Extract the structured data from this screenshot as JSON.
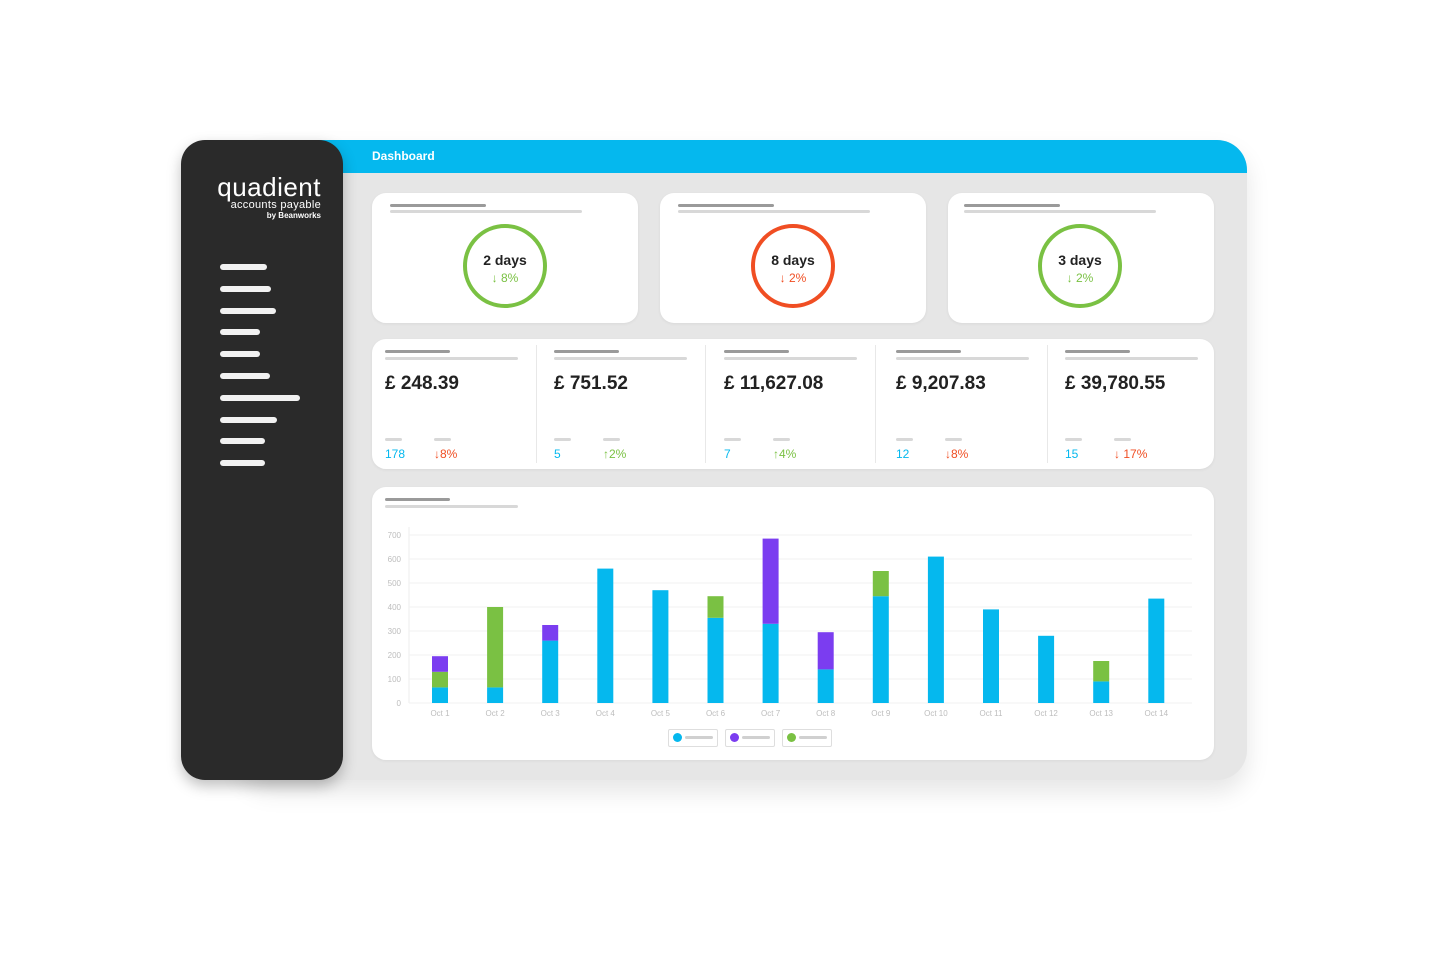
{
  "window": {
    "title": "Dashboard"
  },
  "logo": {
    "main": "quadient",
    "sub": "accounts payable",
    "by": "by Beanworks"
  },
  "sidebar": {
    "item_count": 10
  },
  "kpis": [
    {
      "value": "2 days",
      "arrow": "↓",
      "change": "8%",
      "status": "good",
      "color": "#7ac143"
    },
    {
      "value": "8 days",
      "arrow": "↓",
      "change": "2%",
      "status": "bad",
      "color": "#f04e23"
    },
    {
      "value": "3 days",
      "arrow": "↓",
      "change": "2%",
      "status": "good",
      "color": "#7ac143"
    }
  ],
  "stats": [
    {
      "amount": "£ 248.39",
      "count": "178",
      "arrow": "↓",
      "change": "8%",
      "trend": "down"
    },
    {
      "amount": "£ 751.52",
      "count": "5",
      "arrow": "↑",
      "change": "2%",
      "trend": "up"
    },
    {
      "amount": "£ 11,627.08",
      "count": "7",
      "arrow": "↑",
      "change": "4%",
      "trend": "up"
    },
    {
      "amount": "£ 9,207.83",
      "count": "12",
      "arrow": "↓",
      "change": "8%",
      "trend": "down"
    },
    {
      "amount": "£ 39,780.55",
      "count": "15",
      "arrow": "↓",
      "change": "17%",
      "trend": "down"
    }
  ],
  "colors": {
    "accent": "#05b8ee",
    "purple": "#7b3df0",
    "green": "#7ac143",
    "red": "#f04e23"
  },
  "chart_data": {
    "type": "bar",
    "stacked": true,
    "categories": [
      "Oct 1",
      "Oct 2",
      "Oct 3",
      "Oct 4",
      "Oct 5",
      "Oct 6",
      "Oct 7",
      "Oct 8",
      "Oct 9",
      "Oct 10",
      "Oct 11",
      "Oct 12",
      "Oct 13",
      "Oct 14"
    ],
    "series": [
      {
        "color": "#05b8ee",
        "values": [
          65,
          65,
          260,
          560,
          470,
          355,
          330,
          140,
          445,
          610,
          390,
          280,
          90,
          435
        ]
      },
      {
        "color": "#7ac143",
        "values": [
          65,
          335,
          0,
          0,
          0,
          90,
          0,
          0,
          105,
          0,
          0,
          0,
          85,
          0
        ]
      },
      {
        "color": "#7b3df0",
        "values": [
          65,
          0,
          65,
          0,
          0,
          0,
          355,
          155,
          0,
          0,
          0,
          0,
          0,
          0
        ]
      }
    ],
    "yticks": [
      "0",
      "100",
      "200",
      "300",
      "400",
      "500",
      "600",
      "700"
    ],
    "ylim": [
      0,
      700
    ],
    "grid": true,
    "legend": "bottom-center"
  }
}
